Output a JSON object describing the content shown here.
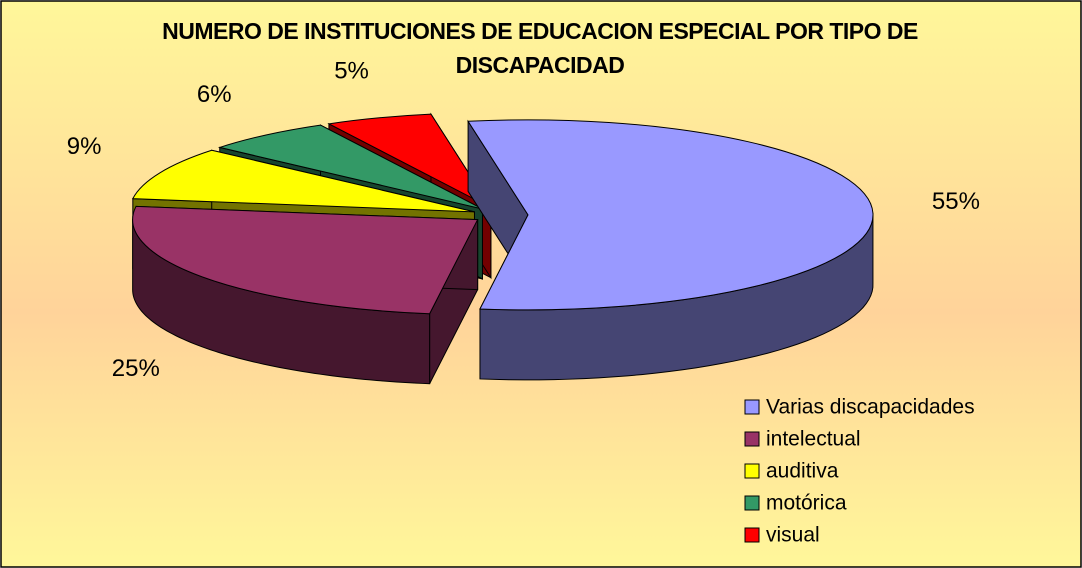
{
  "chart_data": {
    "type": "pie3d",
    "title": "NUMERO DE INSTITUCIONES DE EDUCACION ESPECIAL POR TIPO DE DISCAPACIDAD",
    "categories": [
      "Varias discapacidades",
      "intelectual",
      "auditiva",
      "motórica",
      "visual"
    ],
    "values": [
      55,
      25,
      9,
      6,
      5
    ],
    "value_labels": [
      "55%",
      "25%",
      "9%",
      "6%",
      "5%"
    ],
    "colors": [
      "#9999ff",
      "#993366",
      "#ffff00",
      "#339966",
      "#ff0000"
    ],
    "legend": "bottom-right"
  }
}
